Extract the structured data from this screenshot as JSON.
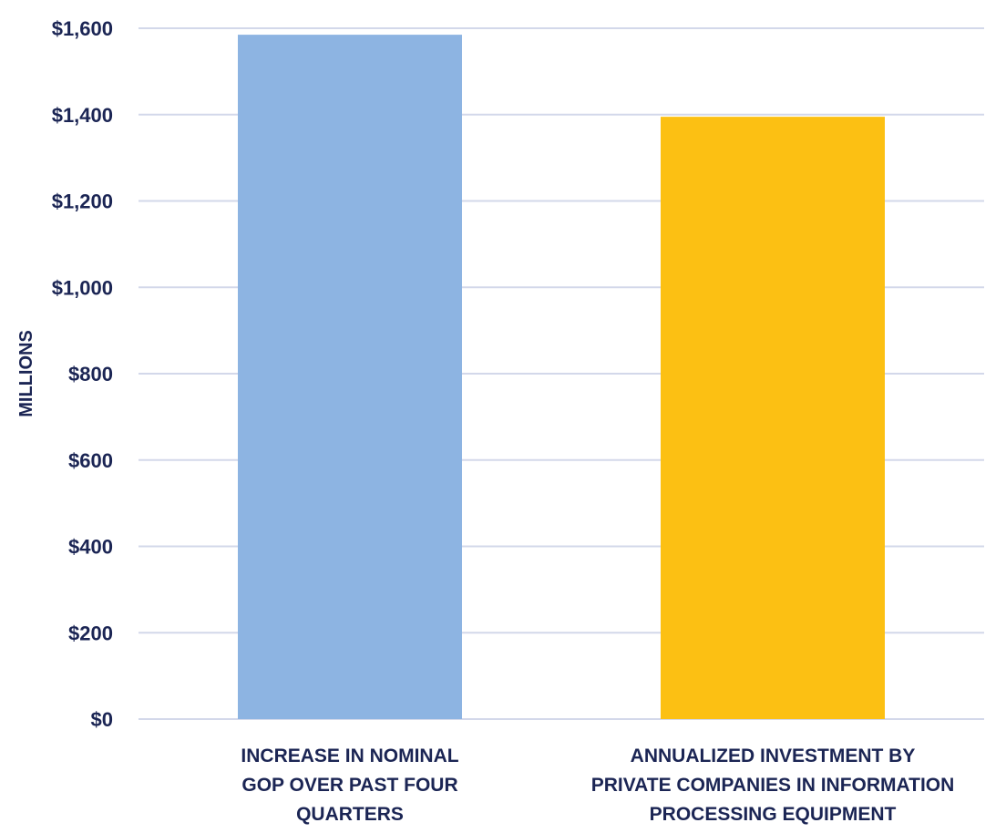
{
  "chart_data": {
    "type": "bar",
    "categories": [
      [
        "INCREASE IN NOMINAL",
        "GOP OVER PAST FOUR",
        "QUARTERS"
      ],
      [
        "ANNUALIZED INVESTMENT BY",
        "PRIVATE COMPANIES IN INFORMATION",
        "PROCESSING EQUIPMENT"
      ]
    ],
    "values": [
      1585,
      1395
    ],
    "bar_colors": [
      "#8db4e2",
      "#fcc013"
    ],
    "title": "",
    "xlabel": "",
    "ylabel": "MILLIONS",
    "ylim": [
      0,
      1600
    ],
    "yticks": [
      0,
      200,
      400,
      600,
      800,
      1000,
      1200,
      1400,
      1600
    ],
    "ytick_labels": [
      "$0",
      "$200",
      "$400",
      "$600",
      "$800",
      "$1,000",
      "$1,200",
      "$1,400",
      "$1,600"
    ],
    "grid": true,
    "legend": "none"
  },
  "colors": {
    "text": "#1b2554",
    "grid": "#d3d8ea"
  }
}
